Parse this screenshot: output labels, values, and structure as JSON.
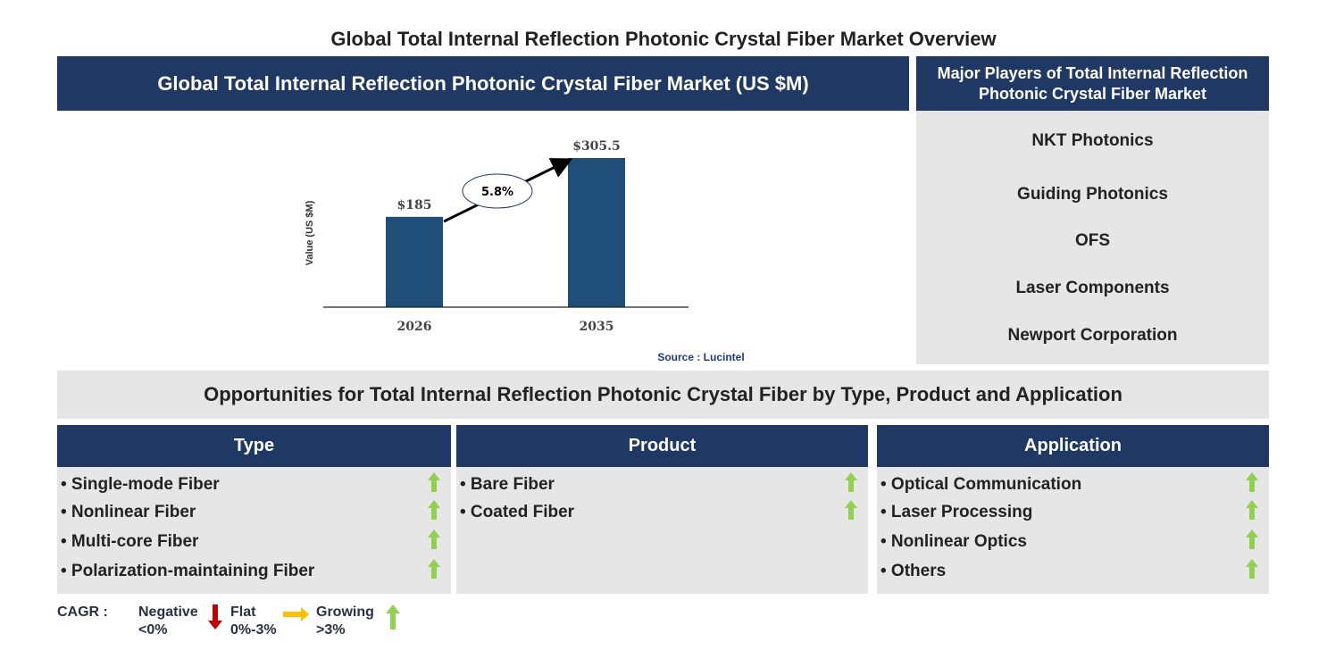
{
  "title": "Global Total Internal Reflection Photonic Crystal Fiber Market Overview",
  "market_panel": {
    "header": "Global Total Internal Reflection Photonic Crystal Fiber Market (US $M)",
    "source": "Source : Lucintel"
  },
  "chart_data": {
    "type": "bar",
    "categories": [
      "2026",
      "2035"
    ],
    "values": [
      185,
      305.5
    ],
    "data_labels": [
      "$185",
      "$305.5"
    ],
    "ylabel": "Value (US $M)",
    "xlabel": "",
    "cagr_annotation": "5.8%",
    "grid": false,
    "bar_color": "#1f4e79"
  },
  "players_panel": {
    "header": "Major Players of Total Internal Reflection Photonic Crystal Fiber Market",
    "players": [
      "NKT Photonics",
      "Guiding Photonics",
      "OFS",
      "Laser Components",
      "Newport Corporation"
    ]
  },
  "opportunities": {
    "title": "Opportunities for Total Internal Reflection Photonic Crystal Fiber by Type, Product and Application",
    "columns": [
      {
        "header": "Type",
        "items": [
          "• Single-mode Fiber",
          "• Nonlinear Fiber",
          "• Multi-core Fiber",
          "• Polarization-maintaining Fiber"
        ],
        "trend": [
          "growing",
          "growing",
          "growing",
          "growing"
        ]
      },
      {
        "header": "Product",
        "items": [
          "• Bare Fiber",
          "• Coated Fiber"
        ],
        "trend": [
          "growing",
          "growing"
        ]
      },
      {
        "header": "Application",
        "items": [
          "• Optical Communication",
          "• Laser Processing",
          "• Nonlinear Optics",
          "• Others"
        ],
        "trend": [
          "growing",
          "growing",
          "growing",
          "growing"
        ]
      }
    ]
  },
  "legend": {
    "label": "CAGR :",
    "negative": {
      "label": "Negative",
      "range": "<0%",
      "color": "#c00000"
    },
    "flat": {
      "label": "Flat",
      "range": "0%-3%",
      "color": "#ffc000"
    },
    "growing": {
      "label": "Growing",
      "range": ">3%",
      "color": "#92d050"
    }
  },
  "colors": {
    "navy": "#203864",
    "panel_gray": "#e7e6e6"
  }
}
